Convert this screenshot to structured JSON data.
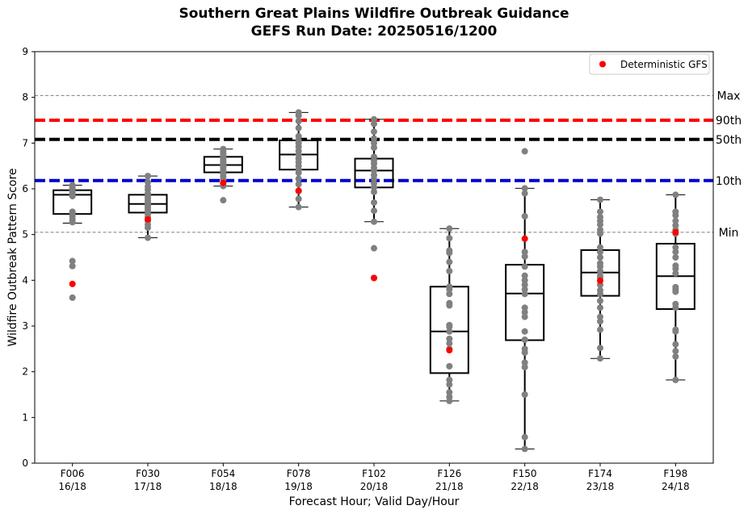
{
  "chart_data": {
    "type": "box",
    "title": "Southern Great Plains Wildfire Outbreak Guidance",
    "subtitle": "GEFS Run Date: 20250516/1200",
    "xlabel": "Forecast Hour; Valid Day/Hour",
    "ylabel": "Wildfire Outbreak Pattern Score",
    "ylim": [
      0,
      9
    ],
    "yticks": [
      "0",
      "1",
      "2",
      "3",
      "4",
      "5",
      "6",
      "7",
      "8",
      "9"
    ],
    "categories": [
      {
        "hour": "F006",
        "valid": "16/18"
      },
      {
        "hour": "F030",
        "valid": "17/18"
      },
      {
        "hour": "F054",
        "valid": "18/18"
      },
      {
        "hour": "F078",
        "valid": "19/18"
      },
      {
        "hour": "F102",
        "valid": "20/18"
      },
      {
        "hour": "F126",
        "valid": "21/18"
      },
      {
        "hour": "F150",
        "valid": "22/18"
      },
      {
        "hour": "F174",
        "valid": "23/18"
      },
      {
        "hour": "F198",
        "valid": "24/18"
      }
    ],
    "boxes": [
      {
        "whislo": 5.25,
        "q1": 5.45,
        "med": 5.87,
        "q3": 5.97,
        "whishi": 6.08
      },
      {
        "whislo": 4.93,
        "q1": 5.48,
        "med": 5.67,
        "q3": 5.87,
        "whishi": 6.28
      },
      {
        "whislo": 6.06,
        "q1": 6.36,
        "med": 6.52,
        "q3": 6.7,
        "whishi": 6.87
      },
      {
        "whislo": 5.6,
        "q1": 6.42,
        "med": 6.75,
        "q3": 7.06,
        "whishi": 7.67
      },
      {
        "whislo": 5.28,
        "q1": 6.03,
        "med": 6.4,
        "q3": 6.66,
        "whishi": 7.52
      },
      {
        "whislo": 1.36,
        "q1": 1.97,
        "med": 2.88,
        "q3": 3.86,
        "whishi": 5.13
      },
      {
        "whislo": 0.31,
        "q1": 2.69,
        "med": 3.71,
        "q3": 4.34,
        "whishi": 6.01
      },
      {
        "whislo": 2.29,
        "q1": 3.66,
        "med": 4.17,
        "q3": 4.66,
        "whishi": 5.76
      },
      {
        "whislo": 1.82,
        "q1": 3.37,
        "med": 4.09,
        "q3": 4.8,
        "whishi": 5.87
      }
    ],
    "members": [
      [
        3.62,
        4.31,
        4.42,
        5.27,
        5.33,
        5.4,
        5.47,
        5.5,
        5.84,
        5.88,
        5.9,
        5.92,
        5.95,
        5.98,
        6.0,
        6.02,
        6.05,
        6.08
      ],
      [
        4.93,
        5.15,
        5.22,
        5.3,
        5.38,
        5.45,
        5.5,
        5.55,
        5.6,
        5.64,
        5.67,
        5.7,
        5.75,
        5.8,
        5.85,
        5.9,
        5.98,
        6.05,
        6.15,
        6.28
      ],
      [
        5.75,
        6.06,
        6.1,
        6.2,
        6.27,
        6.33,
        6.38,
        6.42,
        6.47,
        6.52,
        6.56,
        6.6,
        6.64,
        6.68,
        6.72,
        6.77,
        6.82,
        6.87
      ],
      [
        5.6,
        5.78,
        5.95,
        6.1,
        6.22,
        6.35,
        6.42,
        6.5,
        6.58,
        6.66,
        6.75,
        6.83,
        6.92,
        7.0,
        7.06,
        7.15,
        7.33,
        7.48,
        7.6,
        7.67
      ],
      [
        4.05,
        4.7,
        5.28,
        5.52,
        5.7,
        5.93,
        6.03,
        6.12,
        6.22,
        6.3,
        6.4,
        6.46,
        6.55,
        6.62,
        6.7,
        6.9,
        7.0,
        7.1,
        7.25,
        7.42,
        7.52
      ],
      [
        1.36,
        1.45,
        1.55,
        1.72,
        1.82,
        2.12,
        2.5,
        2.62,
        2.72,
        2.88,
        2.98,
        3.02,
        3.45,
        3.5,
        3.7,
        3.8,
        3.86,
        4.2,
        4.4,
        4.6,
        4.65,
        4.92,
        5.13
      ],
      [
        0.31,
        0.57,
        1.5,
        2.1,
        2.2,
        2.42,
        2.5,
        2.7,
        2.88,
        3.2,
        3.3,
        3.4,
        3.7,
        3.8,
        3.9,
        4.0,
        4.1,
        4.3,
        4.52,
        4.62,
        5.4,
        5.9,
        6.01,
        6.82
      ],
      [
        2.29,
        2.52,
        2.92,
        3.1,
        3.2,
        3.4,
        3.55,
        3.7,
        3.78,
        3.9,
        4.05,
        4.1,
        4.2,
        4.3,
        4.37,
        4.5,
        4.62,
        4.72,
        5.02,
        5.1,
        5.22,
        5.3,
        5.38,
        5.5,
        5.76
      ],
      [
        1.82,
        2.33,
        2.45,
        2.6,
        2.88,
        2.92,
        3.4,
        3.48,
        3.75,
        3.8,
        3.85,
        4.15,
        4.25,
        4.32,
        4.5,
        4.62,
        4.72,
        5.02,
        5.1,
        5.2,
        5.3,
        5.42,
        5.5,
        5.87
      ]
    ],
    "deterministic": {
      "name": "Deterministic GFS",
      "color": "#ff0000",
      "values": [
        3.92,
        5.33,
        6.13,
        5.96,
        4.05,
        2.47,
        4.91,
        3.99,
        5.05
      ]
    },
    "reference_lines": [
      {
        "label": "Max",
        "value": 8.04,
        "color": "#808080",
        "style": "thin-dashed"
      },
      {
        "label": "90th",
        "value": 7.5,
        "color": "#ff0000",
        "style": "thick-dashed"
      },
      {
        "label": "50th",
        "value": 7.08,
        "color": "#000000",
        "style": "thick-dashed"
      },
      {
        "label": "10th",
        "value": 6.18,
        "color": "#0000cc",
        "style": "thick-dashed"
      },
      {
        "label": "Min",
        "value": 5.05,
        "color": "#808080",
        "style": "thin-dashed"
      }
    ],
    "member_color": "#808080",
    "legend_position": "top-right",
    "grid": false
  }
}
